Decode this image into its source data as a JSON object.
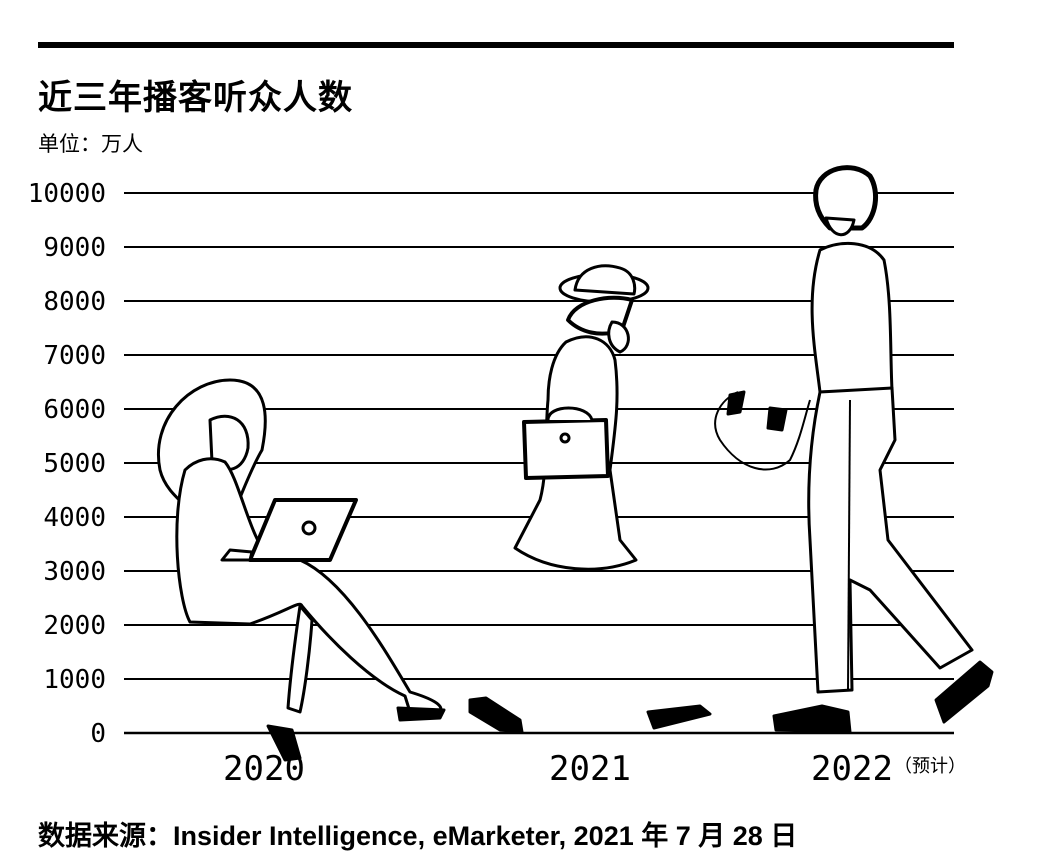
{
  "chart_data": {
    "type": "bar",
    "title": "近三年播客听众人数",
    "unit_label": "单位：万人",
    "categories": [
      "2020",
      "2021",
      "2022"
    ],
    "category_notes": [
      "",
      "",
      "（预计）"
    ],
    "values": [
      2000,
      3000,
      6400
    ],
    "ylim": [
      0,
      10000
    ],
    "yticks": [
      0,
      1000,
      2000,
      3000,
      4000,
      5000,
      6000,
      7000,
      8000,
      9000,
      10000
    ],
    "grid": true,
    "legend": "none",
    "source": "数据来源：Insider Intelligence, eMarketer, 2021 年 7 月 28 日"
  },
  "colors": {
    "ink": "#000000",
    "background": "#ffffff"
  },
  "illustration_icons": [
    "woman-with-laptop-icon",
    "woman-with-handbag-icon",
    "man-with-helmet-icon"
  ]
}
